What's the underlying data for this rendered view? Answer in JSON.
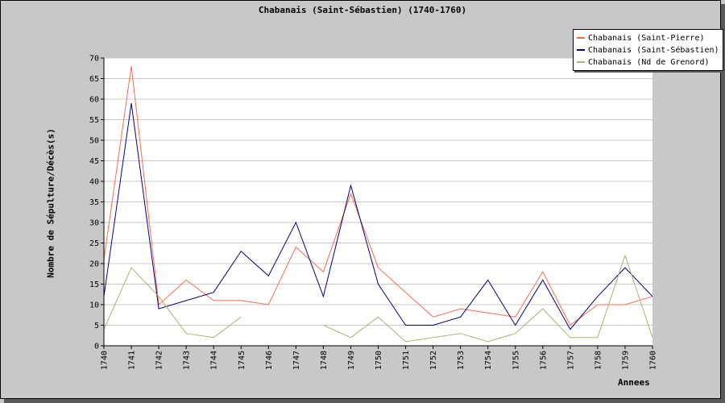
{
  "chart_data": {
    "type": "line",
    "title": "Chabanais (Saint-Sébastien) (1740-1760)",
    "xlabel": "Annees",
    "ylabel": "Nombre de Sépulture/Décès(s)",
    "ylim": [
      0,
      70
    ],
    "yticks": [
      0,
      5,
      10,
      15,
      20,
      25,
      30,
      35,
      40,
      45,
      50,
      55,
      60,
      65,
      70
    ],
    "categories": [
      "1740",
      "1741",
      "1742",
      "1743",
      "1744",
      "1745",
      "1746",
      "1747",
      "1748",
      "1749",
      "1750",
      "1751",
      "1752",
      "1753",
      "1754",
      "1755",
      "1756",
      "1757",
      "1758",
      "1759",
      "1760"
    ],
    "grid": true,
    "legend_position": "top-right",
    "series": [
      {
        "name": "Chabanais (Saint-Pierre)",
        "color": "#ff6a4a",
        "values": [
          21,
          68,
          10,
          16,
          11,
          11,
          10,
          24,
          18,
          37,
          19,
          13,
          7,
          9,
          8,
          7,
          18,
          5,
          10,
          10,
          12
        ]
      },
      {
        "name": "Chabanais (Saint-Sébastien)",
        "color": "#000080",
        "values": [
          12,
          59,
          9,
          11,
          13,
          23,
          17,
          30,
          12,
          39,
          15,
          5,
          5,
          7,
          16,
          5,
          16,
          4,
          12,
          19,
          12
        ]
      },
      {
        "name": "Chabanais (Nd de Grenord)",
        "color": "#b0b070",
        "values": [
          4,
          19,
          12,
          3,
          2,
          7,
          null,
          null,
          5,
          2,
          7,
          1,
          2,
          3,
          1,
          3,
          9,
          2,
          2,
          22,
          2
        ]
      }
    ]
  }
}
